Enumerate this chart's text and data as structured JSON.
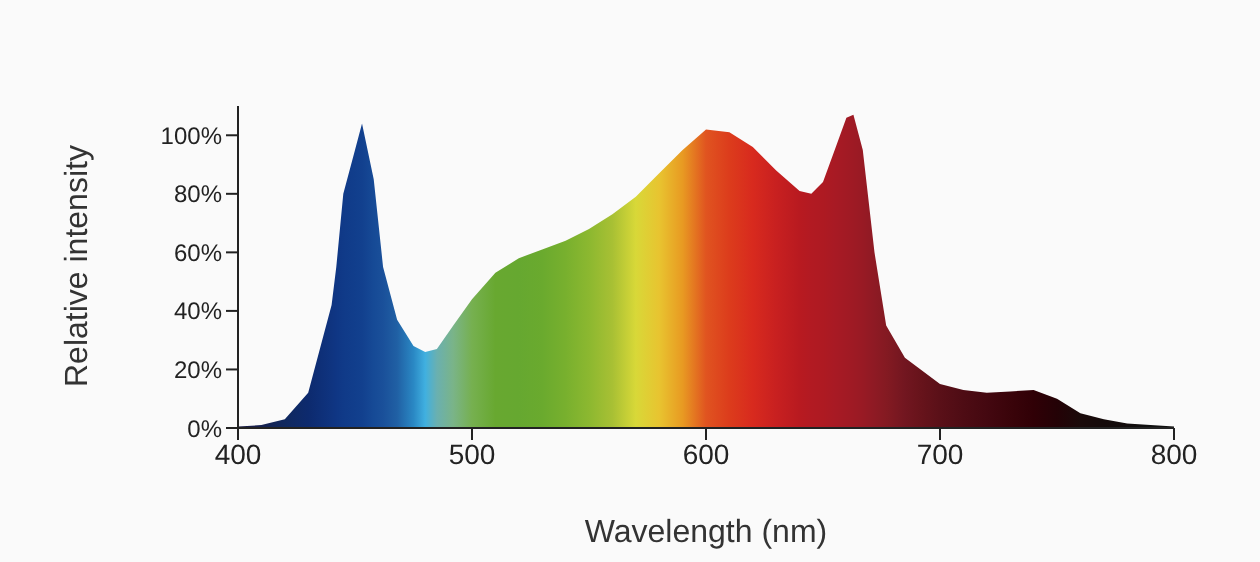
{
  "chart_data": {
    "type": "area",
    "xlabel": "Wavelength (nm)",
    "ylabel": "Relative intensity",
    "x": [
      400,
      410,
      420,
      430,
      440,
      442,
      445,
      450,
      453,
      458,
      462,
      468,
      475,
      480,
      485,
      492,
      500,
      510,
      520,
      530,
      540,
      550,
      560,
      570,
      580,
      590,
      600,
      610,
      620,
      630,
      640,
      645,
      650,
      655,
      660,
      663,
      667,
      672,
      677,
      685,
      690,
      700,
      710,
      720,
      730,
      740,
      750,
      760,
      770,
      780,
      790,
      800
    ],
    "values": [
      0.5,
      1,
      3,
      12,
      42,
      55,
      80,
      95,
      104,
      85,
      55,
      37,
      28,
      26,
      27,
      35,
      44,
      53,
      58,
      61,
      64,
      68,
      73,
      79,
      87,
      95,
      102,
      101,
      96,
      88,
      81,
      80,
      84,
      95,
      106,
      107,
      95,
      60,
      35,
      24,
      21,
      15,
      13,
      12,
      12.5,
      13,
      10,
      5,
      3,
      1.5,
      1,
      0.5
    ],
    "colors": [
      "#1a1a40",
      "#15204f",
      "#10285e",
      "#0d2a6e",
      "#0f3480",
      "#0f3684",
      "#103a88",
      "#113e8c",
      "#12408e",
      "#164a96",
      "#1a509a",
      "#2060a4",
      "#2a88c4",
      "#40b0e0",
      "#6ab0b0",
      "#7ab488",
      "#76b050",
      "#68a830",
      "#66a830",
      "#6aaa2e",
      "#78b02e",
      "#8cb830",
      "#a8c034",
      "#d8d838",
      "#e8c430",
      "#e89a22",
      "#e05420",
      "#dc3c1c",
      "#d82a1e",
      "#c82020",
      "#b81a20",
      "#b21a22",
      "#ae1a22",
      "#a81a24",
      "#a21a24",
      "#9e1a24",
      "#981a24",
      "#8e1a24",
      "#841a22",
      "#721620",
      "#6a141c",
      "#5a1018",
      "#4e0c14",
      "#440810",
      "#3a040a",
      "#300006",
      "#240206",
      "#1a0a0a",
      "#140a0a",
      "#120c0c",
      "#101010",
      "#101010"
    ],
    "ylim": [
      0,
      110
    ],
    "yticks": [
      {
        "value": 0,
        "label": "0%"
      },
      {
        "value": 20,
        "label": "20%"
      },
      {
        "value": 40,
        "label": "40%"
      },
      {
        "value": 60,
        "label": "60%"
      },
      {
        "value": 80,
        "label": "80%"
      },
      {
        "value": 100,
        "label": "100%"
      }
    ],
    "xlim": [
      400,
      800
    ],
    "xticks": [
      400,
      500,
      600,
      700,
      800
    ],
    "grid": false,
    "legend": false
  }
}
